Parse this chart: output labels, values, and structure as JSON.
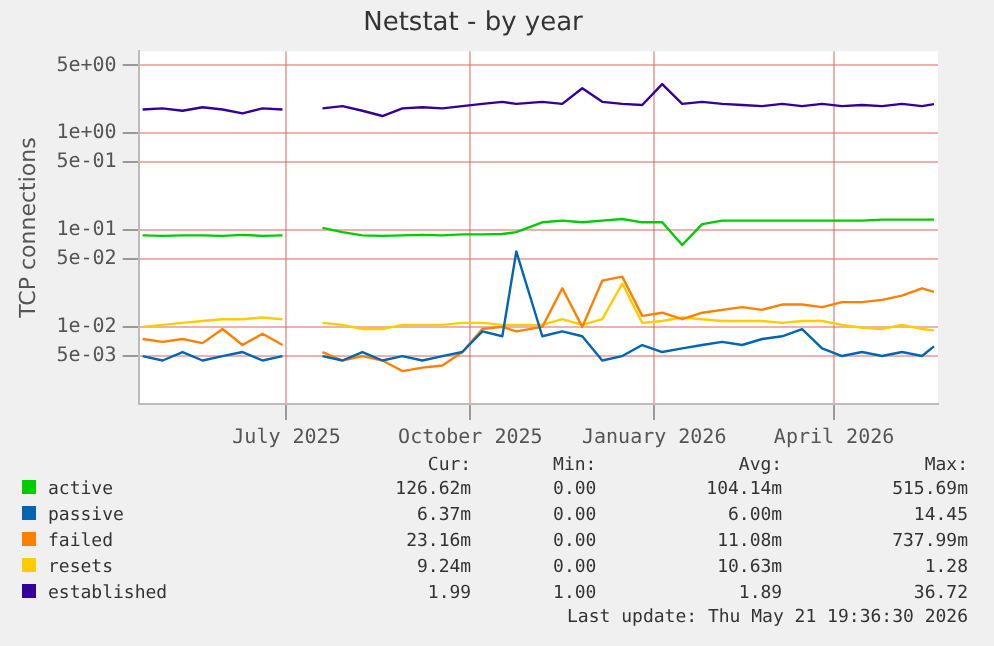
{
  "chart_data": {
    "type": "line",
    "title": "Netstat - by year",
    "ylabel": "TCP connections",
    "log": "y",
    "grid": true,
    "legend": "bottom",
    "marker": "none",
    "line_style": "solid",
    "x": [
      "2025-04-20",
      "2025-04-30",
      "2025-05-10",
      "2025-05-20",
      "2025-05-30",
      "2025-06-09",
      "2025-06-19",
      "2025-06-29",
      "2025-07-09",
      "2025-07-19",
      "2025-07-29",
      "2025-08-08",
      "2025-08-18",
      "2025-08-28",
      "2025-09-07",
      "2025-09-17",
      "2025-09-27",
      "2025-10-07",
      "2025-10-17",
      "2025-10-24",
      "2025-11-06",
      "2025-11-16",
      "2025-11-26",
      "2025-12-06",
      "2025-12-16",
      "2025-12-26",
      "2026-01-05",
      "2026-01-15",
      "2026-01-25",
      "2026-02-04",
      "2026-02-14",
      "2026-02-24",
      "2026-03-06",
      "2026-03-16",
      "2026-03-26",
      "2026-04-05",
      "2026-04-15",
      "2026-04-25",
      "2026-05-05",
      "2026-05-15",
      "2026-05-21"
    ],
    "xlim": [
      "2025-04-18",
      "2026-05-23"
    ],
    "xticks": [
      {
        "value": "2025-07-01",
        "label": "July 2025"
      },
      {
        "value": "2025-10-01",
        "label": "October 2025"
      },
      {
        "value": "2026-01-01",
        "label": "January 2026"
      },
      {
        "value": "2026-04-01",
        "label": "April 2026"
      }
    ],
    "ylim": [
      0.0016,
      7
    ],
    "yticks": [
      {
        "value": 0.005,
        "label": "5e-03"
      },
      {
        "value": 0.01,
        "label": "1e-02"
      },
      {
        "value": 0.05,
        "label": "5e-02"
      },
      {
        "value": 0.1,
        "label": "1e-01"
      },
      {
        "value": 0.5,
        "label": "5e-01"
      },
      {
        "value": 1,
        "label": "1e+00"
      },
      {
        "value": 5,
        "label": "5e+00"
      }
    ],
    "series": [
      {
        "name": "active",
        "color": "#00cc00",
        "values": [
          0.088,
          0.087,
          0.088,
          0.088,
          0.087,
          0.089,
          0.087,
          0.088,
          null,
          0.105,
          0.095,
          0.088,
          0.087,
          0.088,
          0.089,
          0.088,
          0.09,
          0.09,
          0.091,
          0.095,
          0.12,
          0.125,
          0.12,
          0.125,
          0.13,
          0.12,
          0.12,
          0.07,
          0.115,
          0.125,
          0.125,
          0.125,
          0.125,
          0.125,
          0.125,
          0.125,
          0.125,
          0.128,
          0.128,
          0.128,
          0.128
        ]
      },
      {
        "name": "passive",
        "color": "#0066b3",
        "values": [
          0.005,
          0.0045,
          0.0055,
          0.0045,
          0.005,
          0.0055,
          0.0045,
          0.005,
          null,
          0.005,
          0.0045,
          0.0055,
          0.0045,
          0.005,
          0.0045,
          0.005,
          0.0055,
          0.009,
          0.008,
          0.06,
          0.008,
          0.009,
          0.008,
          0.0045,
          0.005,
          0.0065,
          0.0055,
          0.006,
          0.0065,
          0.007,
          0.0065,
          0.0075,
          0.008,
          0.0095,
          0.006,
          0.005,
          0.0055,
          0.005,
          0.0055,
          0.005,
          0.0063
        ]
      },
      {
        "name": "failed",
        "color": "#ff8000",
        "values": [
          0.0075,
          0.007,
          0.0075,
          0.0068,
          0.0095,
          0.0065,
          0.0085,
          0.0065,
          null,
          0.0055,
          0.0045,
          0.005,
          0.0045,
          0.0035,
          0.0038,
          0.004,
          0.0055,
          0.0095,
          0.01,
          0.009,
          0.01,
          0.025,
          0.01,
          0.03,
          0.033,
          0.013,
          0.014,
          0.012,
          0.014,
          0.015,
          0.016,
          0.015,
          0.017,
          0.017,
          0.016,
          0.018,
          0.018,
          0.019,
          0.021,
          0.025,
          0.023
        ]
      },
      {
        "name": "resets",
        "color": "#ffcc00",
        "values": [
          0.01,
          0.0105,
          0.011,
          0.0115,
          0.012,
          0.012,
          0.0125,
          0.012,
          null,
          0.011,
          0.0105,
          0.0095,
          0.0095,
          0.0105,
          0.0105,
          0.0105,
          0.011,
          0.011,
          0.0105,
          0.0105,
          0.0105,
          0.012,
          0.0105,
          0.012,
          0.028,
          0.011,
          0.0115,
          0.0125,
          0.012,
          0.0115,
          0.0115,
          0.0115,
          0.011,
          0.0115,
          0.0115,
          0.0105,
          0.0098,
          0.0095,
          0.0105,
          0.0095,
          0.0092
        ]
      },
      {
        "name": "established",
        "color": "#330099",
        "values": [
          1.75,
          1.8,
          1.7,
          1.85,
          1.75,
          1.6,
          1.8,
          1.75,
          null,
          1.8,
          1.9,
          1.7,
          1.5,
          1.8,
          1.85,
          1.8,
          1.9,
          2.0,
          2.1,
          2.0,
          2.1,
          2.0,
          2.9,
          2.1,
          2.0,
          1.95,
          3.2,
          2.0,
          2.1,
          2.0,
          1.95,
          1.9,
          2.0,
          1.9,
          2.0,
          1.9,
          1.95,
          1.9,
          2.0,
          1.9,
          1.99
        ]
      }
    ],
    "annotations": [
      "Cur:",
      "Min:",
      "Avg:",
      "Max:",
      "126.62m",
      "0.00",
      "104.14m",
      "515.69m",
      "6.37m",
      "0.00",
      "6.00m",
      "14.45",
      "23.16m",
      "0.00",
      "11.08m",
      "737.99m",
      "9.24m",
      "0.00",
      "10.63m",
      "1.28",
      "1.99",
      "1.00",
      "1.89",
      "36.72",
      "Last update: Thu May 21 19:36:30 2026"
    ]
  }
}
